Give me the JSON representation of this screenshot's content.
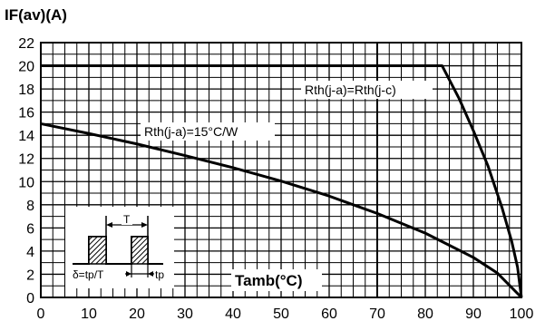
{
  "chart_data": {
    "type": "line",
    "title": "IF(av)(A)",
    "xlabel": "Tamb(°C)",
    "ylabel": "",
    "xlim": [
      0,
      100
    ],
    "ylim": [
      0,
      22
    ],
    "xticks": [
      0,
      10,
      20,
      30,
      40,
      50,
      60,
      70,
      80,
      90,
      100
    ],
    "yticks": [
      0,
      2,
      4,
      6,
      8,
      10,
      12,
      14,
      16,
      18,
      20,
      22
    ],
    "grid": true,
    "series": [
      {
        "name": "Rth(j-a)=Rth(j-c)",
        "x": [
          0,
          83.5,
          87,
          90,
          93,
          96,
          98,
          99.2,
          100
        ],
        "y": [
          20,
          20,
          17.2,
          14.4,
          11.4,
          7.7,
          4.8,
          2.6,
          0
        ]
      },
      {
        "name": "Rth(j-a)=15°C/W",
        "x": [
          0,
          10,
          20,
          30,
          40,
          50,
          60,
          70,
          80,
          90,
          95,
          100
        ],
        "y": [
          15,
          14.15,
          13.25,
          12.25,
          11.2,
          10.05,
          8.75,
          7.25,
          5.55,
          3.45,
          2.1,
          0
        ]
      }
    ],
    "annotations": [
      {
        "text": "Rth(j-a)=Rth(j-c)"
      },
      {
        "text": "Rth(j-a)=15°C/W"
      }
    ],
    "inset": {
      "period_label": "T",
      "duty_label": "δ=tp/T",
      "pulse_label": "tp"
    }
  }
}
